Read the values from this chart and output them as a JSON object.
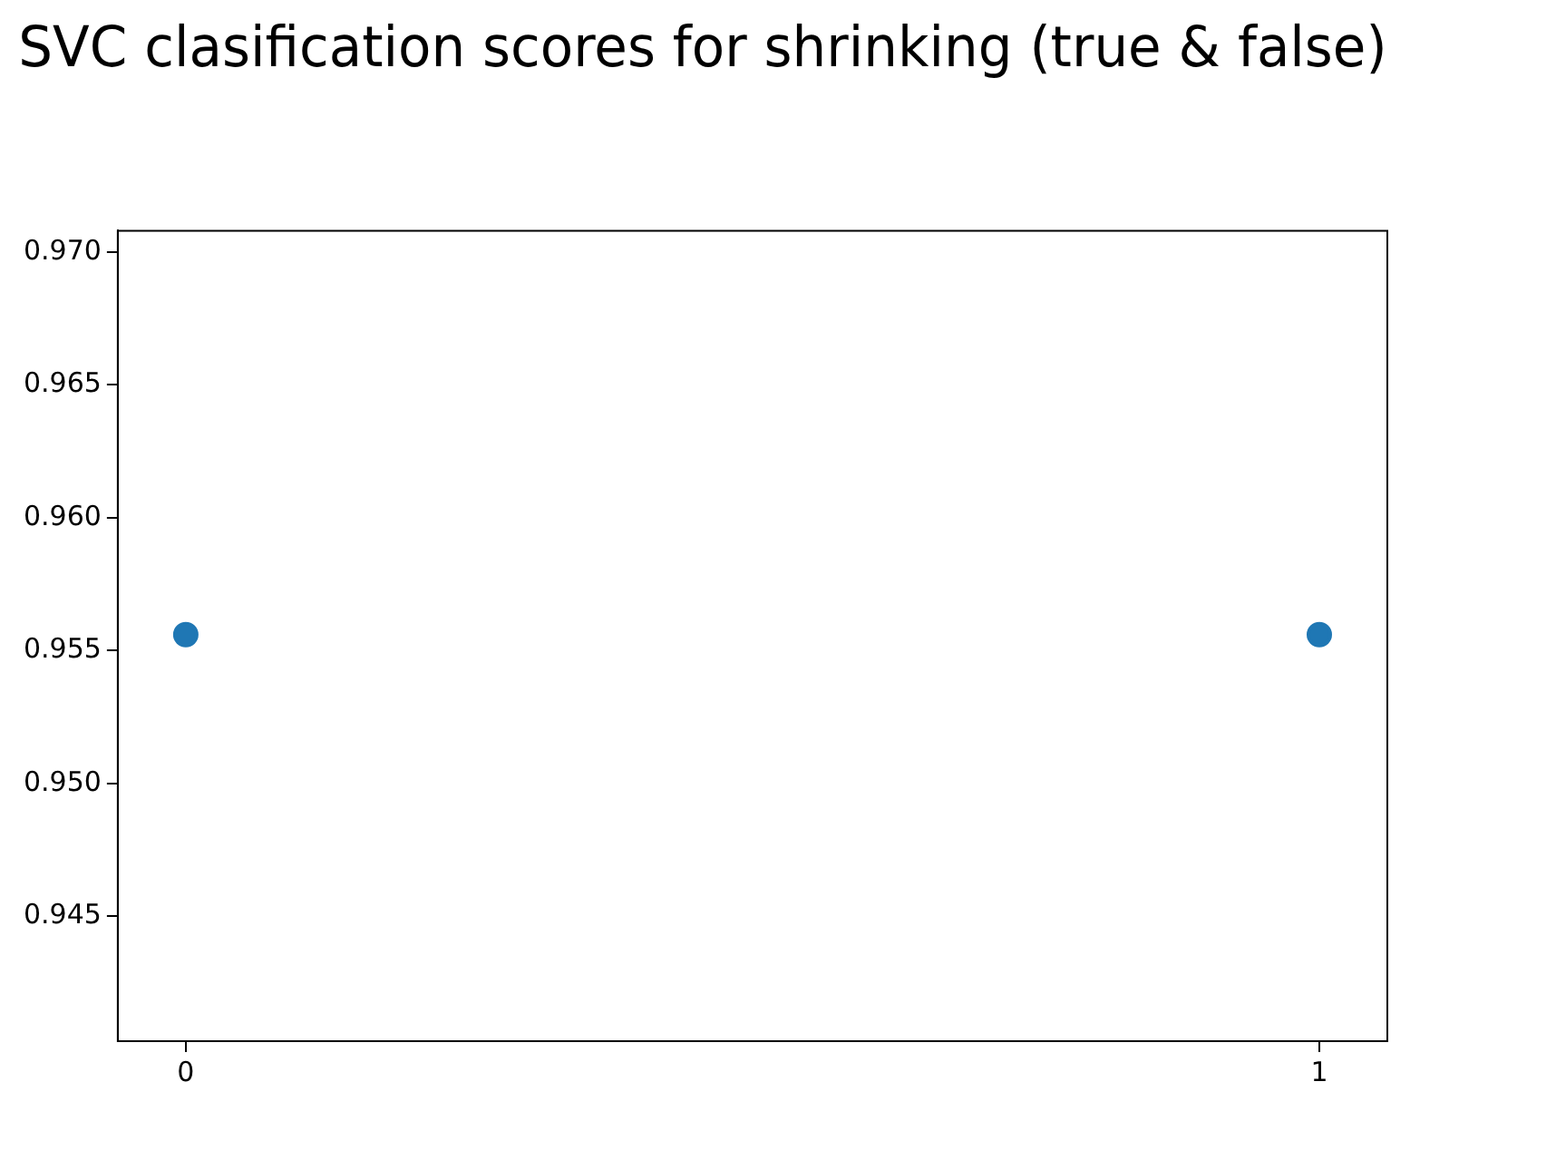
{
  "chart_data": {
    "type": "scatter",
    "title": "SVC clasification scores for shrinking (true & false)",
    "x": [
      0,
      1
    ],
    "series": [
      {
        "color": "#1f77b4",
        "values": [
          0.9556,
          0.9556
        ]
      }
    ],
    "xlim": [
      -0.06,
      1.06
    ],
    "xticks": [
      0,
      1
    ],
    "ylim": [
      0.9403,
      0.9708
    ],
    "yticks": [
      0.945,
      {
        "value": 0.95,
        "label": "0.950"
      },
      0.955,
      {
        "value": 0.96,
        "label": "0.960"
      },
      0.965,
      {
        "value": 0.97,
        "label": "0.970"
      }
    ],
    "marker": "circle",
    "grid": false,
    "legend": false
  }
}
